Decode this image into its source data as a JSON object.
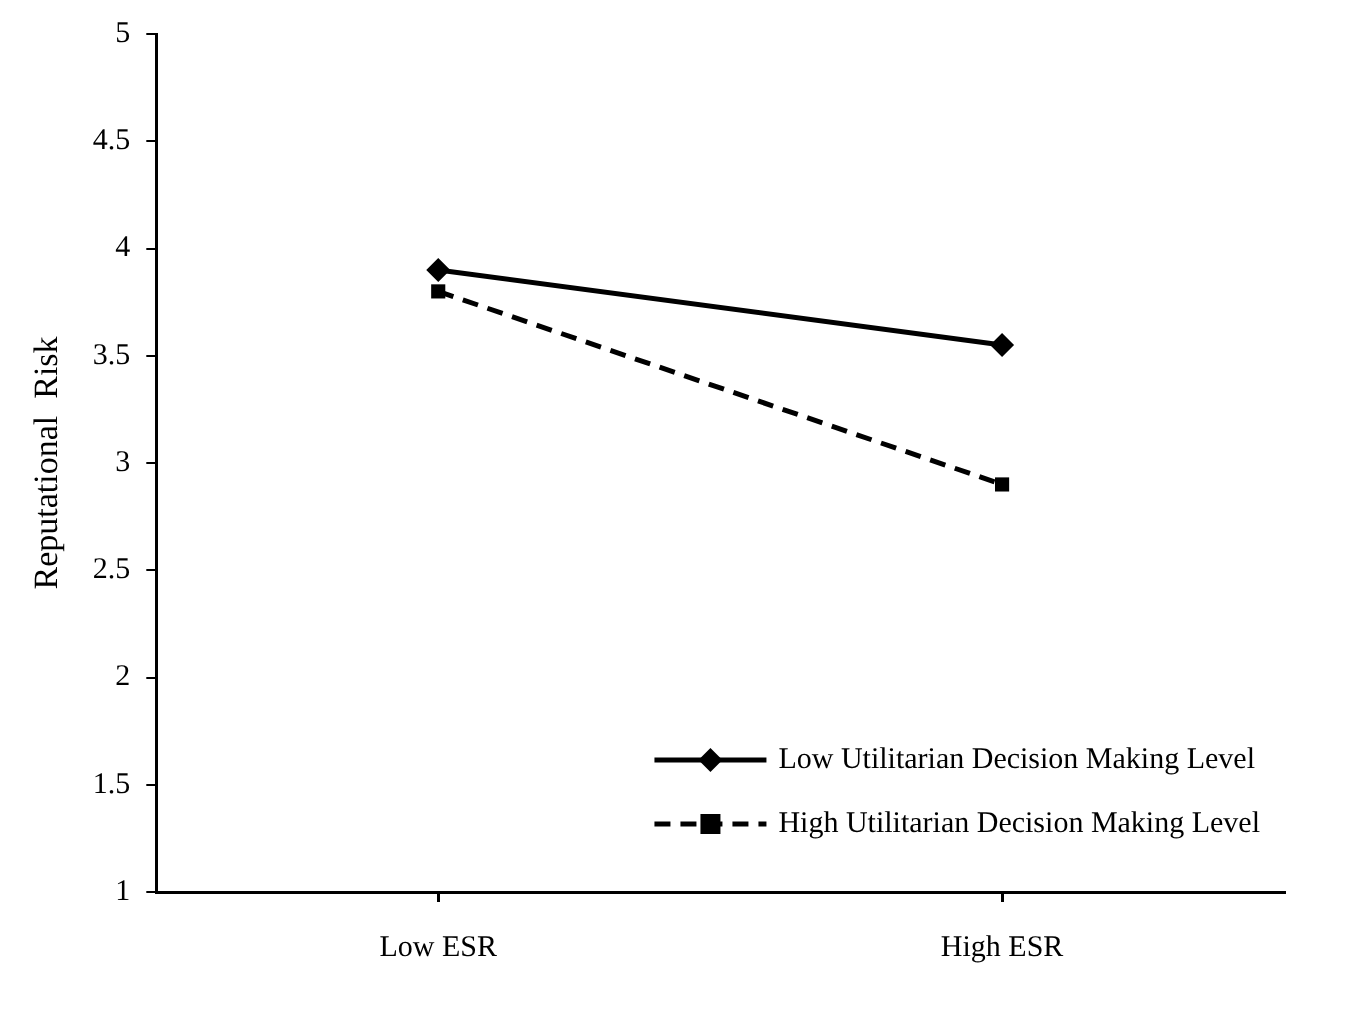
{
  "chart_data": {
    "type": "line",
    "ylabel": "Reputational  Risk",
    "categories": [
      "Low ESR",
      "High ESR"
    ],
    "series": [
      {
        "name": "Low Utilitarian Decision Making Level",
        "color": "#000000",
        "values": [
          3.9,
          3.55
        ],
        "marker": "diamond",
        "line_style": "solid"
      },
      {
        "name": "High Utilitarian Decision Making Level",
        "color": "#000000",
        "values": [
          3.8,
          2.9
        ],
        "marker": "square",
        "line_style": "dashed"
      }
    ],
    "ylim": [
      1,
      5
    ],
    "yticks": [
      1,
      1.5,
      2,
      2.5,
      3,
      3.5,
      4,
      4.5,
      5
    ],
    "grid": false,
    "legend": "bottom right"
  }
}
